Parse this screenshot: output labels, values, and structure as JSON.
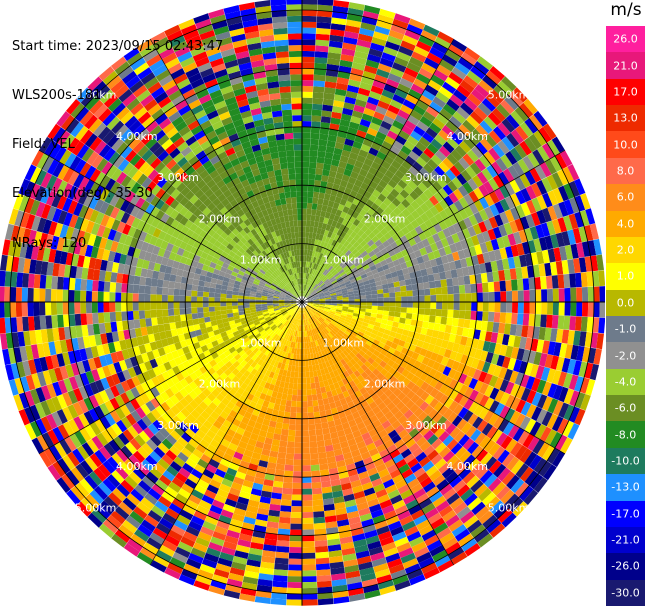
{
  "header": {
    "start_time": "Start time: 2023/09/15 02:43:47",
    "instrument": "WLS200s-181",
    "field": "Field: VEL",
    "elevation": "Elevation(deg): 35.30",
    "nrays": "NRays: 120"
  },
  "colorbar": {
    "unit": "m/s",
    "ticks": [
      "26.0",
      "21.0",
      "17.0",
      "13.0",
      "10.0",
      "8.0",
      "6.0",
      "4.0",
      "2.0",
      "1.0",
      "0.0",
      "-1.0",
      "-2.0",
      "-4.0",
      "-6.0",
      "-8.0",
      "-10.0",
      "-13.0",
      "-17.0",
      "-21.0",
      "-26.0",
      "-30.0"
    ],
    "colors": [
      "#ff1f9e",
      "#e8187a",
      "#ff0000",
      "#ee2a00",
      "#ff4a1a",
      "#ff6a4a",
      "#ff8c1a",
      "#ffaa00",
      "#ffd700",
      "#ffff00",
      "#b8b800",
      "#6e7b8b",
      "#909090",
      "#9acd32",
      "#6b8e23",
      "#228b22",
      "#1e7b5e",
      "#1e90ff",
      "#0000ff",
      "#0000cd",
      "#00008b",
      "#191970"
    ]
  },
  "chart_data": {
    "type": "heatmap",
    "title": "",
    "projection": "polar PPI (range-azimuth)",
    "field": "VEL",
    "units": "m/s",
    "elevation_deg": 35.3,
    "n_rays": 120,
    "range_rings_km": [
      1.0,
      2.0,
      3.0,
      4.0,
      5.0
    ],
    "range_ring_labels": [
      "1.00km",
      "2.00km",
      "3.00km",
      "4.00km",
      "5.00km"
    ],
    "max_range_km": 5.2,
    "color_scale_min": -30.0,
    "color_scale_max": 26.0,
    "azimuth_spokes_deg": [
      0,
      30,
      60,
      90,
      120,
      150,
      180,
      210,
      240,
      270,
      300,
      330
    ],
    "velocity_pattern": [
      {
        "sector": "north",
        "azimuth_deg": 0,
        "value_ms": -6.0
      },
      {
        "sector": "north-east",
        "azimuth_deg": 60,
        "value_ms": -2.0
      },
      {
        "sector": "east",
        "azimuth_deg": 90,
        "value_ms": 0.0
      },
      {
        "sector": "south-east",
        "azimuth_deg": 130,
        "value_ms": 6.0
      },
      {
        "sector": "south",
        "azimuth_deg": 180,
        "value_ms": 6.0
      },
      {
        "sector": "south-west",
        "azimuth_deg": 225,
        "value_ms": 2.0
      },
      {
        "sector": "west",
        "azimuth_deg": 270,
        "value_ms": 0.0
      },
      {
        "sector": "north-west",
        "azimuth_deg": 315,
        "value_ms": -4.0
      }
    ],
    "grid": true
  }
}
